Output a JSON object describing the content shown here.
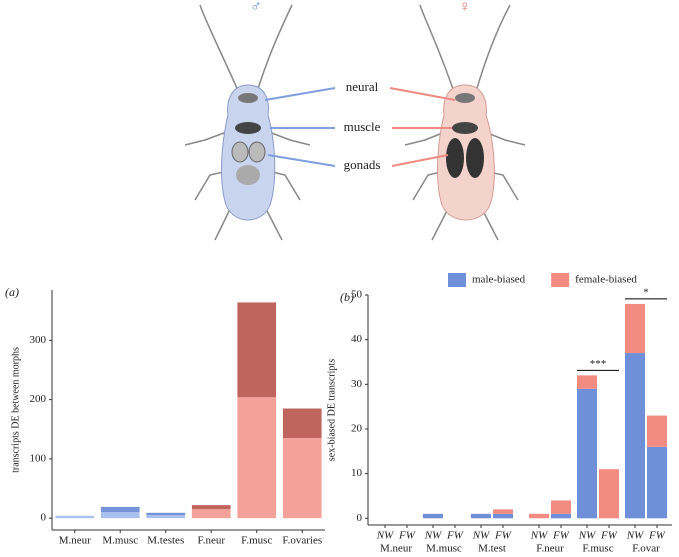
{
  "illustration": {
    "male_symbol": "♂",
    "female_symbol": "♀",
    "labels": [
      "neural",
      "muscle",
      "gonads"
    ]
  },
  "chart_data": [
    {
      "type": "bar",
      "stacked": true,
      "panel": "(a)",
      "y_label": "transcripts DE between morphs",
      "categories": [
        "M.neur",
        "M.musc",
        "M.testes",
        "F.neur",
        "F.musc",
        "F.ovaries"
      ],
      "series": [
        {
          "values": [
            4,
            10,
            5,
            15,
            204,
            135
          ],
          "colors": [
            "#a9bfee",
            "#a9bfee",
            "#a9bfee",
            "#f4a19a",
            "#f4a19a",
            "#f4a19a"
          ]
        },
        {
          "values": [
            0,
            9,
            4,
            7,
            160,
            50
          ],
          "colors": [
            "#7593d8",
            "#7593d8",
            "#7593d8",
            "#c0645e",
            "#c0645e",
            "#c0645e"
          ]
        }
      ],
      "ylim": [
        -20,
        385
      ],
      "yticks": [
        0,
        100,
        200,
        300
      ]
    },
    {
      "type": "bar",
      "stacked": true,
      "panel": "(b)",
      "y_label": "sex-biased DE transcripts",
      "categories": [
        "NW",
        "FW",
        "NW",
        "FW",
        "NW",
        "FW",
        "NW",
        "FW",
        "NW",
        "FW",
        "NW",
        "FW"
      ],
      "groups": [
        "M.neur",
        "M.musc",
        "M.test",
        "F.neur",
        "F.musc",
        "F.ovar"
      ],
      "series": [
        {
          "name": "male-biased",
          "color": "#6f8fd8",
          "values": [
            0,
            0,
            1,
            0,
            1,
            1,
            0,
            1,
            29,
            0,
            37,
            16
          ]
        },
        {
          "name": "female-biased",
          "color": "#f28b82",
          "values": [
            0,
            0,
            0,
            0,
            0,
            1,
            1,
            3,
            3,
            11,
            11,
            7
          ]
        }
      ],
      "annotations": [
        {
          "text": "***",
          "group": "F.musc"
        },
        {
          "text": "*",
          "group": "F.ovar"
        }
      ],
      "ylim": [
        -1.5,
        50
      ],
      "yticks": [
        0,
        10,
        20,
        30,
        40,
        50
      ]
    }
  ]
}
